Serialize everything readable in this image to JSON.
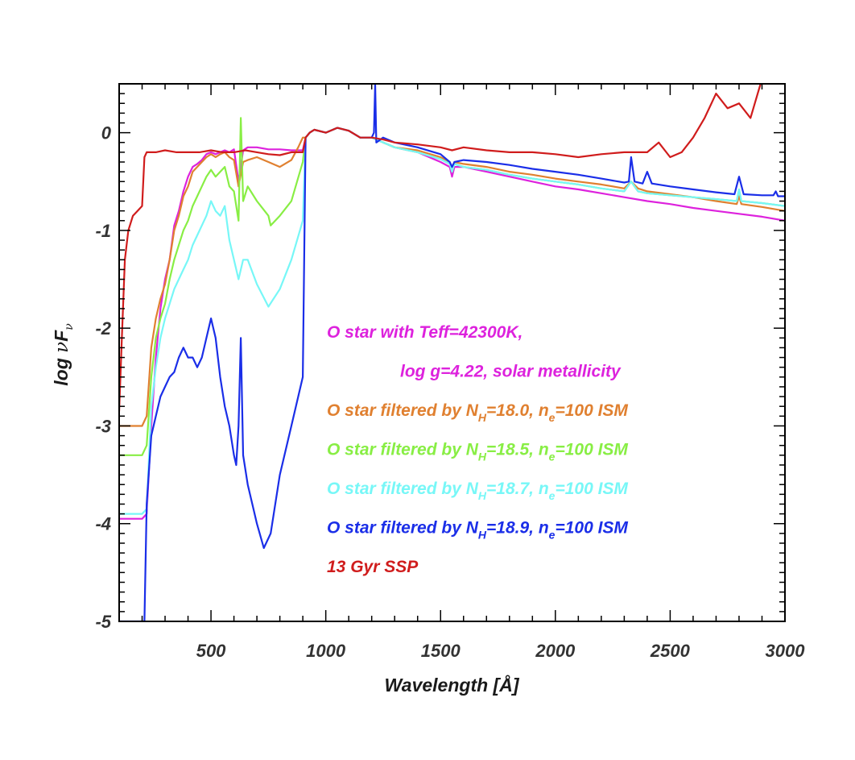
{
  "chart_data": {
    "type": "line",
    "xlabel": "Wavelength [Å]",
    "ylabel": {
      "main": "log ",
      "nu": "ν",
      "F": "F",
      "sub": "ν"
    },
    "xlim": [
      100,
      3000
    ],
    "ylim": [
      -5,
      0.5
    ],
    "xticks": [
      500,
      1000,
      1500,
      2000,
      2500,
      3000
    ],
    "yticks": [
      0,
      -1,
      -2,
      -3,
      -4,
      -5
    ],
    "grid": false,
    "legend_placement": "center-right inside plot",
    "series": [
      {
        "name": "O star with Teff=42300K, log g=4.22, solar metallicity",
        "color": "#dd22dd",
        "x": [
          100,
          200,
          220,
          240,
          260,
          280,
          300,
          320,
          340,
          360,
          380,
          400,
          420,
          440,
          460,
          480,
          500,
          520,
          540,
          560,
          580,
          600,
          620,
          640,
          660,
          700,
          750,
          800,
          850,
          900,
          912,
          930,
          950,
          1000,
          1050,
          1100,
          1150,
          1200,
          1250,
          1300,
          1400,
          1500,
          1540,
          1550,
          1560,
          1600,
          1700,
          1800,
          1900,
          2000,
          2100,
          2200,
          2300,
          2400,
          2500,
          2600,
          2700,
          2800,
          2900,
          3000
        ],
        "y": [
          -3.95,
          -3.95,
          -3.9,
          -3.0,
          -2.3,
          -1.8,
          -1.5,
          -1.3,
          -0.95,
          -0.8,
          -0.6,
          -0.45,
          -0.35,
          -0.32,
          -0.28,
          -0.22,
          -0.2,
          -0.22,
          -0.2,
          -0.18,
          -0.2,
          -0.17,
          -0.5,
          -0.18,
          -0.15,
          -0.15,
          -0.17,
          -0.17,
          -0.18,
          -0.18,
          -0.05,
          0.0,
          0.03,
          0.0,
          0.05,
          0.02,
          -0.05,
          -0.05,
          -0.1,
          -0.15,
          -0.2,
          -0.3,
          -0.35,
          -0.45,
          -0.35,
          -0.35,
          -0.4,
          -0.45,
          -0.5,
          -0.55,
          -0.58,
          -0.62,
          -0.66,
          -0.7,
          -0.73,
          -0.77,
          -0.8,
          -0.83,
          -0.86,
          -0.9
        ]
      },
      {
        "name": "O star filtered by N_H=18.0, n_e=100 ISM",
        "color": "#e08030",
        "x": [
          100,
          200,
          220,
          240,
          260,
          280,
          300,
          320,
          340,
          360,
          380,
          400,
          420,
          440,
          460,
          480,
          500,
          520,
          540,
          560,
          580,
          600,
          620,
          640,
          660,
          700,
          750,
          800,
          850,
          880,
          900,
          912,
          930,
          950,
          1000,
          1050,
          1100,
          1150,
          1200,
          1250,
          1300,
          1400,
          1500,
          1540,
          1550,
          1560,
          1600,
          1700,
          1800,
          1900,
          2000,
          2100,
          2200,
          2300,
          2330,
          2360,
          2400,
          2500,
          2600,
          2700,
          2790,
          2800,
          2810,
          2900,
          3000
        ],
        "y": [
          -3.0,
          -3.0,
          -2.9,
          -2.2,
          -1.9,
          -1.7,
          -1.55,
          -1.3,
          -1.0,
          -0.85,
          -0.65,
          -0.55,
          -0.4,
          -0.35,
          -0.3,
          -0.25,
          -0.22,
          -0.25,
          -0.22,
          -0.2,
          -0.25,
          -0.28,
          -0.55,
          -0.3,
          -0.28,
          -0.25,
          -0.3,
          -0.35,
          -0.28,
          -0.15,
          -0.05,
          -0.05,
          0.0,
          0.03,
          0.0,
          0.05,
          0.02,
          -0.05,
          -0.05,
          -0.1,
          -0.15,
          -0.18,
          -0.25,
          -0.3,
          -0.38,
          -0.3,
          -0.32,
          -0.35,
          -0.4,
          -0.43,
          -0.47,
          -0.5,
          -0.53,
          -0.57,
          -0.5,
          -0.57,
          -0.6,
          -0.63,
          -0.66,
          -0.7,
          -0.73,
          -0.65,
          -0.73,
          -0.76,
          -0.8
        ]
      },
      {
        "name": "O star filtered by N_H=18.5, n_e=100 ISM",
        "color": "#88ee44",
        "x": [
          100,
          200,
          220,
          240,
          260,
          280,
          300,
          320,
          340,
          360,
          380,
          400,
          420,
          440,
          460,
          480,
          500,
          520,
          540,
          560,
          580,
          600,
          620,
          630,
          640,
          660,
          700,
          750,
          760,
          800,
          850,
          900,
          912,
          930,
          950,
          1000,
          1050,
          1100,
          1150,
          1200,
          1250,
          1300,
          1400,
          1500,
          1540,
          1550,
          1560,
          1600,
          1700,
          1800,
          1900,
          2000,
          2100,
          2200,
          2300,
          2330,
          2360,
          2400,
          2500,
          2600,
          2700,
          2790,
          2800,
          2810,
          2900,
          3000
        ],
        "y": [
          -3.3,
          -3.3,
          -3.2,
          -2.5,
          -2.1,
          -1.9,
          -1.75,
          -1.5,
          -1.3,
          -1.15,
          -1.0,
          -0.9,
          -0.75,
          -0.65,
          -0.55,
          -0.45,
          -0.38,
          -0.45,
          -0.4,
          -0.35,
          -0.55,
          -0.6,
          -0.9,
          0.15,
          -0.7,
          -0.55,
          -0.7,
          -0.85,
          -0.95,
          -0.85,
          -0.7,
          -0.3,
          -0.05,
          0.0,
          0.03,
          0.0,
          0.05,
          0.02,
          -0.05,
          -0.05,
          -0.1,
          -0.15,
          -0.2,
          -0.27,
          -0.32,
          -0.4,
          -0.32,
          -0.35,
          -0.38,
          -0.43,
          -0.47,
          -0.5,
          -0.53,
          -0.57,
          -0.6,
          -0.5,
          -0.6,
          -0.62,
          -0.64,
          -0.66,
          -0.68,
          -0.7,
          -0.58,
          -0.7,
          -0.72,
          -0.75
        ]
      },
      {
        "name": "O star filtered by N_H=18.7, n_e=100 ISM",
        "color": "#77f7f7",
        "x": [
          100,
          200,
          220,
          240,
          260,
          280,
          300,
          320,
          340,
          360,
          380,
          400,
          420,
          440,
          460,
          480,
          500,
          520,
          540,
          560,
          580,
          600,
          620,
          640,
          660,
          700,
          750,
          800,
          850,
          900,
          912,
          930,
          950,
          1000,
          1050,
          1100,
          1150,
          1200,
          1250,
          1300,
          1400,
          1500,
          1540,
          1550,
          1560,
          1600,
          1700,
          1800,
          1900,
          2000,
          2100,
          2200,
          2300,
          2330,
          2360,
          2400,
          2500,
          2600,
          2700,
          2790,
          2800,
          2810,
          2900,
          3000
        ],
        "y": [
          -3.9,
          -3.9,
          -3.85,
          -2.8,
          -2.4,
          -2.1,
          -1.9,
          -1.75,
          -1.6,
          -1.5,
          -1.4,
          -1.3,
          -1.15,
          -1.05,
          -0.95,
          -0.85,
          -0.7,
          -0.8,
          -0.85,
          -0.75,
          -1.1,
          -1.3,
          -1.5,
          -1.3,
          -1.3,
          -1.55,
          -1.78,
          -1.6,
          -1.3,
          -0.9,
          -0.05,
          0.0,
          0.03,
          0.0,
          0.05,
          0.02,
          -0.05,
          -0.05,
          -0.1,
          -0.15,
          -0.2,
          -0.27,
          -0.32,
          -0.4,
          -0.32,
          -0.35,
          -0.38,
          -0.43,
          -0.47,
          -0.5,
          -0.53,
          -0.57,
          -0.6,
          -0.5,
          -0.6,
          -0.62,
          -0.64,
          -0.66,
          -0.68,
          -0.7,
          -0.58,
          -0.7,
          -0.72,
          -0.75
        ]
      },
      {
        "name": "O star filtered by N_H=18.9, n_e=100 ISM",
        "color": "#1a2ee8",
        "x": [
          100,
          210,
          220,
          240,
          260,
          280,
          300,
          320,
          340,
          360,
          380,
          400,
          420,
          440,
          460,
          480,
          500,
          520,
          540,
          560,
          580,
          600,
          610,
          620,
          630,
          640,
          660,
          700,
          730,
          760,
          800,
          850,
          900,
          912,
          930,
          950,
          1000,
          1050,
          1100,
          1150,
          1200,
          1210,
          1215,
          1220,
          1250,
          1300,
          1400,
          1500,
          1540,
          1550,
          1560,
          1600,
          1700,
          1800,
          1900,
          2000,
          2100,
          2200,
          2300,
          2320,
          2330,
          2345,
          2380,
          2400,
          2420,
          2500,
          2600,
          2700,
          2780,
          2800,
          2820,
          2900,
          2950,
          2960,
          2970,
          3000
        ],
        "y": [
          -5.0,
          -5.0,
          -3.8,
          -3.1,
          -2.9,
          -2.7,
          -2.6,
          -2.5,
          -2.45,
          -2.3,
          -2.2,
          -2.3,
          -2.3,
          -2.4,
          -2.3,
          -2.1,
          -1.9,
          -2.1,
          -2.5,
          -2.8,
          -3.0,
          -3.3,
          -3.4,
          -3.0,
          -2.1,
          -3.3,
          -3.6,
          -4.0,
          -4.25,
          -4.1,
          -3.5,
          -3.0,
          -2.5,
          -0.05,
          0.0,
          0.03,
          0.0,
          0.05,
          0.02,
          -0.05,
          -0.05,
          0.0,
          0.5,
          -0.1,
          -0.05,
          -0.1,
          -0.15,
          -0.22,
          -0.3,
          -0.35,
          -0.3,
          -0.28,
          -0.3,
          -0.33,
          -0.37,
          -0.4,
          -0.43,
          -0.47,
          -0.51,
          -0.5,
          -0.25,
          -0.5,
          -0.52,
          -0.4,
          -0.52,
          -0.55,
          -0.58,
          -0.61,
          -0.63,
          -0.45,
          -0.63,
          -0.64,
          -0.64,
          -0.6,
          -0.65,
          -0.65
        ]
      },
      {
        "name": "13 Gyr SSP",
        "color": "#d01c1c",
        "x": [
          100,
          110,
          125,
          140,
          160,
          180,
          200,
          210,
          220,
          260,
          300,
          350,
          400,
          450,
          500,
          550,
          600,
          650,
          700,
          750,
          800,
          850,
          900,
          912,
          930,
          950,
          1000,
          1050,
          1100,
          1150,
          1200,
          1250,
          1300,
          1400,
          1500,
          1550,
          1600,
          1700,
          1800,
          1900,
          2000,
          2100,
          2200,
          2300,
          2400,
          2450,
          2500,
          2550,
          2600,
          2650,
          2700,
          2750,
          2800,
          2850,
          2900,
          2950,
          3000
        ],
        "y": [
          -2.85,
          -2.2,
          -1.3,
          -1.0,
          -0.85,
          -0.8,
          -0.75,
          -0.25,
          -0.2,
          -0.2,
          -0.18,
          -0.2,
          -0.2,
          -0.2,
          -0.18,
          -0.2,
          -0.2,
          -0.18,
          -0.2,
          -0.22,
          -0.23,
          -0.2,
          -0.2,
          -0.05,
          0.0,
          0.03,
          0.0,
          0.05,
          0.02,
          -0.05,
          -0.05,
          -0.07,
          -0.1,
          -0.12,
          -0.15,
          -0.18,
          -0.15,
          -0.18,
          -0.2,
          -0.2,
          -0.22,
          -0.25,
          -0.22,
          -0.2,
          -0.2,
          -0.1,
          -0.25,
          -0.2,
          -0.05,
          0.15,
          0.4,
          0.25,
          0.3,
          0.15,
          0.55,
          0.7,
          0.9
        ]
      }
    ],
    "legend": [
      {
        "text": "O star with Teff=42300K,",
        "color": "#dd22dd"
      },
      {
        "text": "log g=4.22, solar metallicity",
        "color": "#dd22dd",
        "indent": true
      },
      {
        "pre": "O star filtered by N",
        "sub1": "H",
        "mid": "=18.0, n",
        "sub2": "e",
        "post": "=100 ISM",
        "color": "#e08030"
      },
      {
        "pre": "O star filtered by N",
        "sub1": "H",
        "mid": "=18.5, n",
        "sub2": "e",
        "post": "=100 ISM",
        "color": "#88ee44"
      },
      {
        "pre": "O star filtered by N",
        "sub1": "H",
        "mid": "=18.7, n",
        "sub2": "e",
        "post": "=100 ISM",
        "color": "#77f7f7"
      },
      {
        "pre": "O star filtered by N",
        "sub1": "H",
        "mid": "=18.9, n",
        "sub2": "e",
        "post": "=100 ISM",
        "color": "#1a2ee8"
      },
      {
        "text": "13 Gyr SSP",
        "color": "#d01c1c"
      }
    ]
  }
}
